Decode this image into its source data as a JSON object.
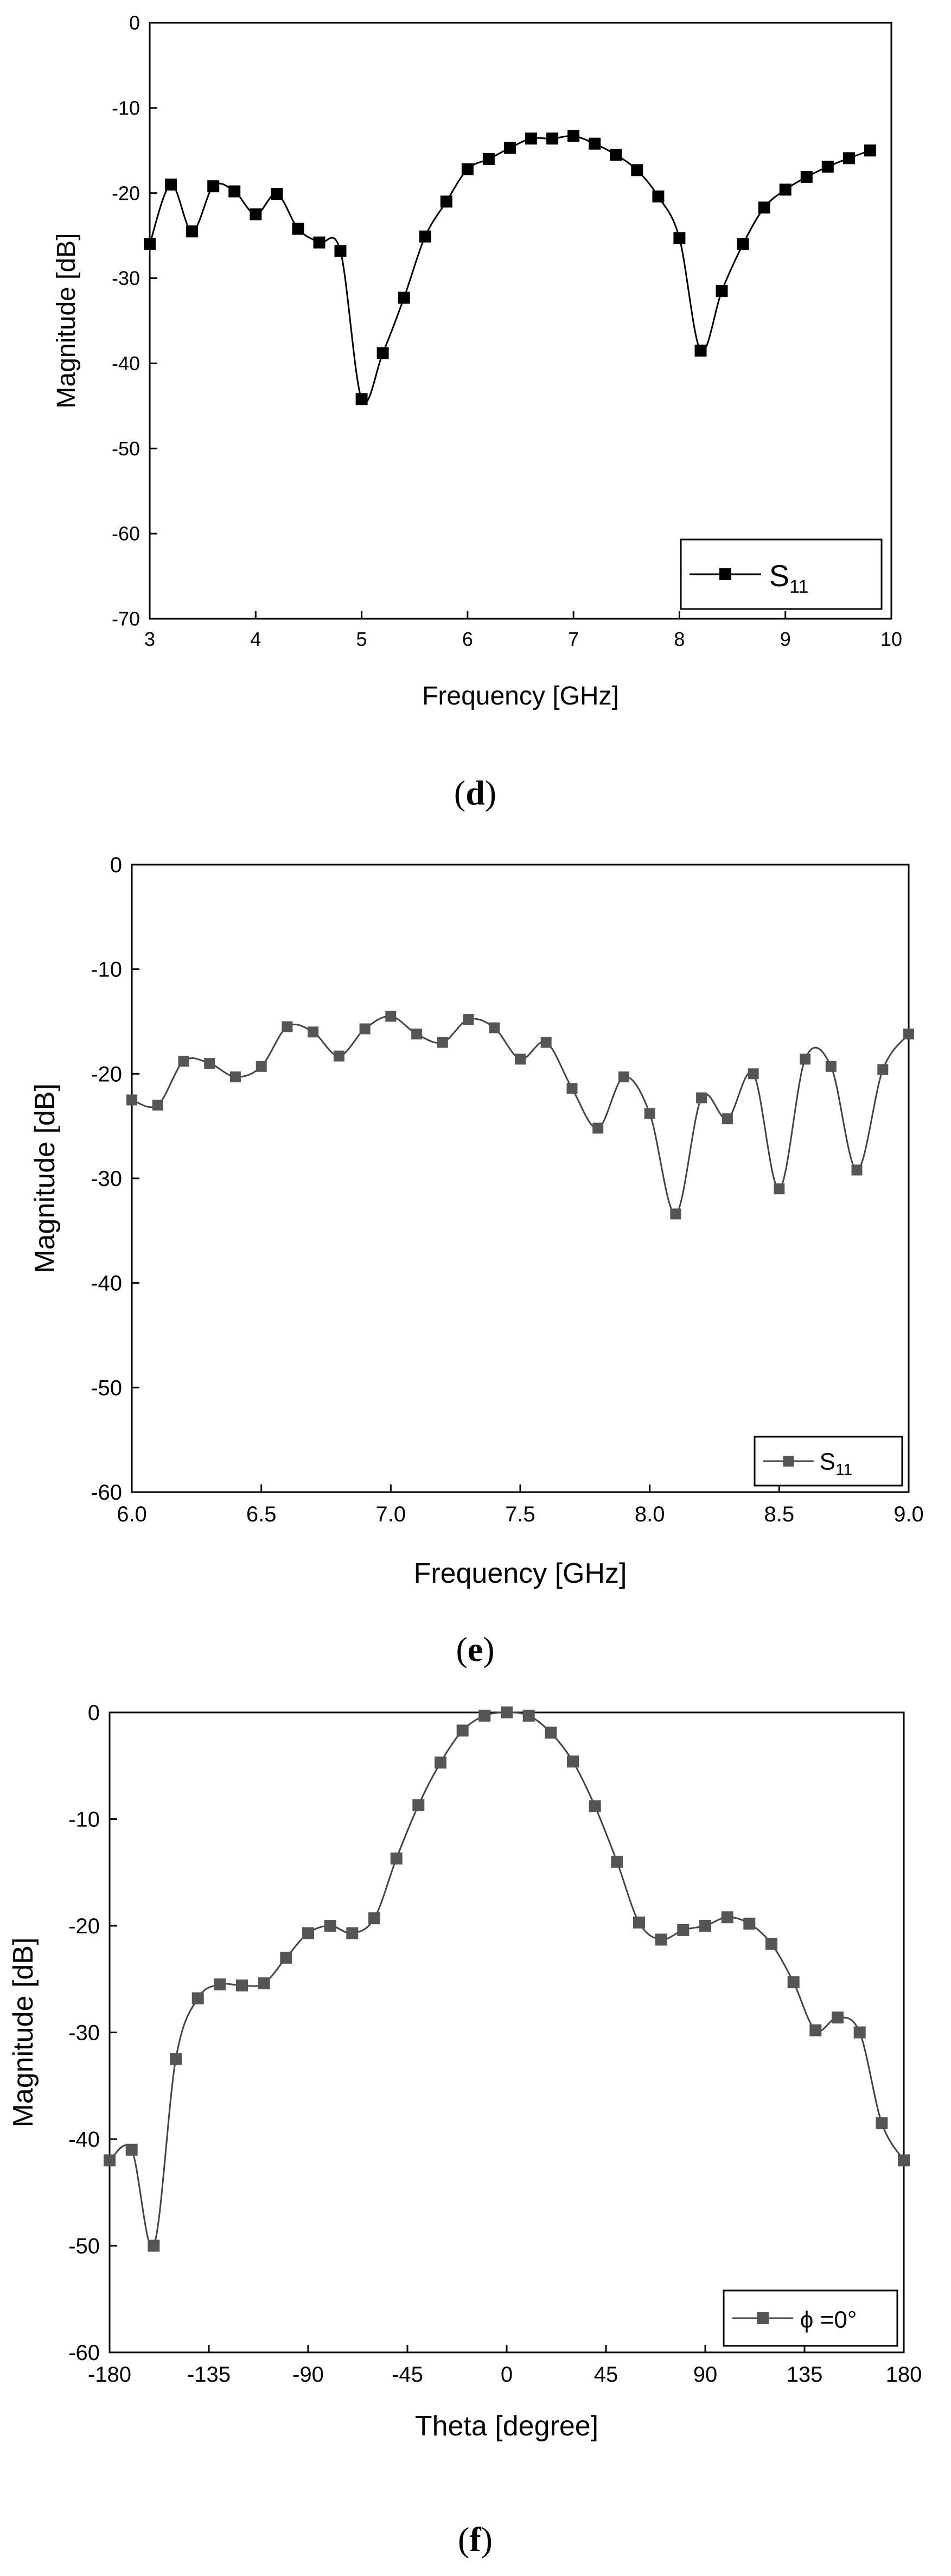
{
  "chart_data": [
    {
      "type": "line",
      "panel": "d",
      "title": "",
      "xlabel": "Frequency [GHz]",
      "ylabel": "Magnitude [dB]",
      "xlim": [
        3,
        10
      ],
      "ylim": [
        -70,
        0
      ],
      "xticks": [
        3,
        4,
        5,
        6,
        7,
        8,
        9,
        10
      ],
      "yticks": [
        0,
        -10,
        -20,
        -30,
        -40,
        -50,
        -60,
        -70
      ],
      "legend_position": "bottom-right",
      "series": [
        {
          "name": "S",
          "name_sub": "11",
          "marker": "square",
          "color": "#000000",
          "x": [
            3.0,
            3.2,
            3.4,
            3.6,
            3.8,
            4.0,
            4.2,
            4.4,
            4.6,
            4.8,
            5.0,
            5.2,
            5.4,
            5.6,
            5.8,
            6.0,
            6.2,
            6.4,
            6.6,
            6.8,
            7.0,
            7.2,
            7.4,
            7.6,
            7.8,
            8.0,
            8.2,
            8.4,
            8.6,
            8.8,
            9.0,
            9.2,
            9.4,
            9.6,
            9.8
          ],
          "y": [
            -26,
            -19,
            -24.5,
            -19.2,
            -19.8,
            -22.5,
            -20.1,
            -24.2,
            -25.8,
            -26.8,
            -44.2,
            -38.8,
            -32.3,
            -25.1,
            -21,
            -17.2,
            -16,
            -14.7,
            -13.6,
            -13.6,
            -13.3,
            -14.2,
            -15.5,
            -17.3,
            -20.4,
            -25.3,
            -38.5,
            -31.5,
            -26,
            -21.7,
            -19.6,
            -18.1,
            -16.9,
            -15.9,
            -15
          ]
        }
      ]
    },
    {
      "type": "line",
      "panel": "e",
      "title": "",
      "xlabel": "Frequency [GHz]",
      "ylabel": "Magnitude [dB]",
      "xlim": [
        6.0,
        9.0
      ],
      "ylim": [
        -60,
        0
      ],
      "xticks": [
        "6.0",
        "6.5",
        "7.0",
        "7.5",
        "8.0",
        "8.5",
        "9.0"
      ],
      "yticks": [
        0,
        -10,
        -20,
        -30,
        -40,
        -50,
        -60
      ],
      "legend_position": "bottom-right",
      "series": [
        {
          "name": "S",
          "name_sub": "11",
          "marker": "square",
          "color": "#555555",
          "x": [
            6.0,
            6.1,
            6.2,
            6.3,
            6.4,
            6.5,
            6.6,
            6.7,
            6.8,
            6.9,
            7.0,
            7.1,
            7.2,
            7.3,
            7.4,
            7.5,
            7.6,
            7.7,
            7.8,
            7.9,
            8.0,
            8.1,
            8.2,
            8.3,
            8.4,
            8.5,
            8.6,
            8.7,
            8.8,
            8.9,
            9.0
          ],
          "y": [
            -22.5,
            -23,
            -18.8,
            -19,
            -20.3,
            -19.3,
            -15.5,
            -16,
            -18.3,
            -15.7,
            -14.5,
            -16.2,
            -17,
            -14.8,
            -15.6,
            -18.6,
            -17,
            -21.4,
            -25.2,
            -20.3,
            -23.8,
            -33.4,
            -22.3,
            -24.3,
            -20,
            -31,
            -18.6,
            -19.3,
            -29.2,
            -19.6,
            -16.2
          ]
        }
      ]
    },
    {
      "type": "line",
      "panel": "f",
      "title": "",
      "xlabel": "Theta [degree]",
      "ylabel": "Magnitude [dB]",
      "xlim": [
        -180,
        180
      ],
      "ylim": [
        -60,
        0
      ],
      "xticks": [
        -180,
        -135,
        -90,
        -45,
        0,
        45,
        90,
        135,
        180
      ],
      "yticks": [
        0,
        -10,
        -20,
        -30,
        -40,
        -50,
        -60
      ],
      "legend_position": "bottom-right",
      "series": [
        {
          "name": "ϕ =0°",
          "marker": "square",
          "color": "#555555",
          "x": [
            -180,
            -170,
            -160,
            -150,
            -140,
            -130,
            -120,
            -110,
            -100,
            -90,
            -80,
            -70,
            -60,
            -50,
            -40,
            -30,
            -20,
            -10,
            0,
            10,
            20,
            30,
            40,
            50,
            60,
            70,
            80,
            90,
            100,
            110,
            120,
            130,
            140,
            150,
            160,
            170,
            180
          ],
          "y": [
            -42,
            -41,
            -50,
            -32.5,
            -26.8,
            -25.5,
            -25.6,
            -25.4,
            -23,
            -20.7,
            -20,
            -20.7,
            -19.3,
            -13.7,
            -8.7,
            -4.7,
            -1.7,
            -0.3,
            0,
            -0.3,
            -1.9,
            -4.6,
            -8.8,
            -14,
            -19.7,
            -21.3,
            -20.4,
            -20,
            -19.2,
            -19.8,
            -21.7,
            -25.3,
            -29.8,
            -28.6,
            -30,
            -38.5,
            -42
          ]
        }
      ]
    }
  ],
  "labels": {
    "panel_d": "d",
    "panel_e": "e",
    "panel_f": "f"
  }
}
